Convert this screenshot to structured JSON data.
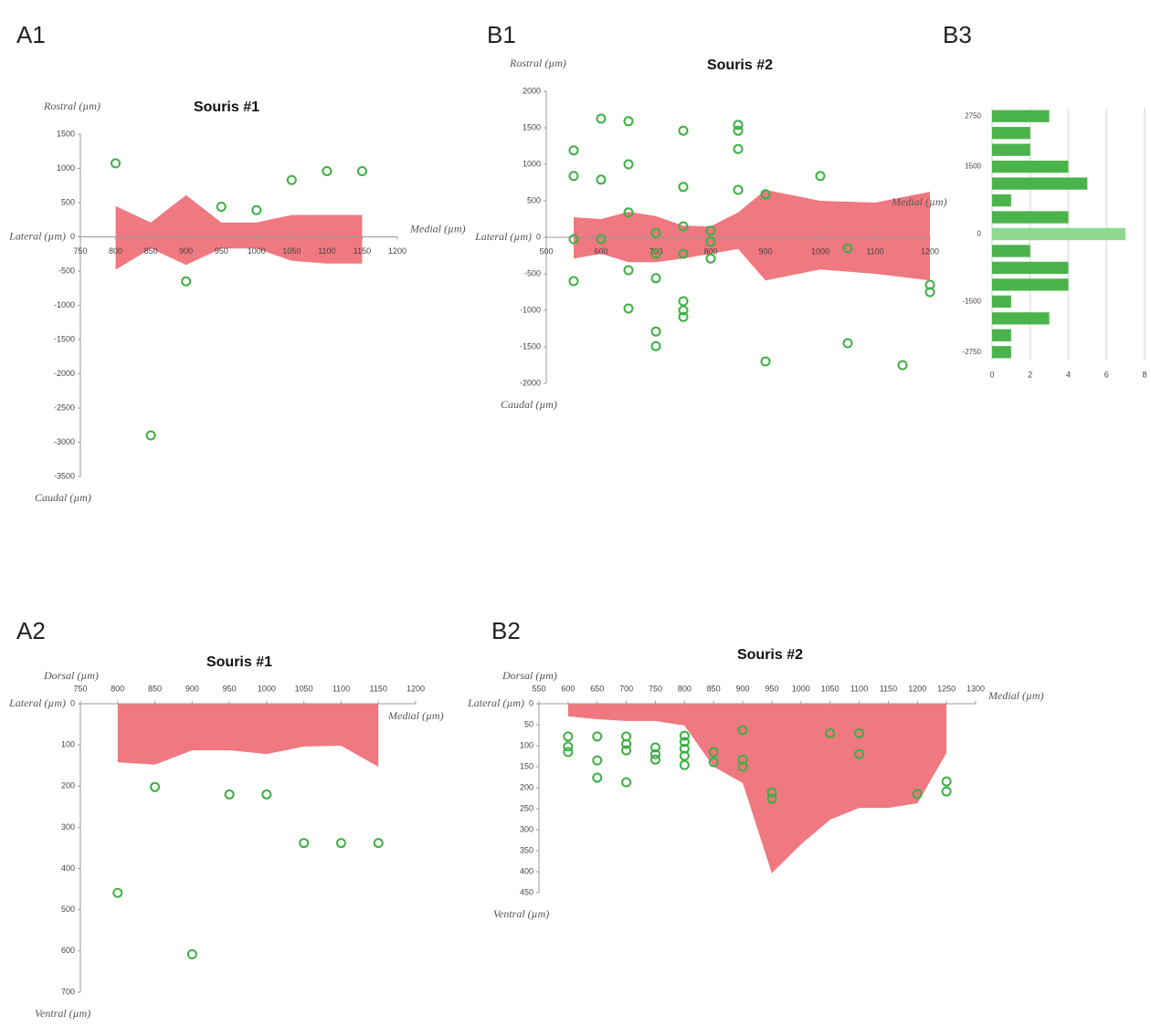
{
  "chart_data": [
    {
      "type": "scatter",
      "panel": "A1",
      "title": "Souris #1",
      "y_label_top": "Rostral (µm)",
      "y_label_bottom": "Caudal (µm)",
      "x_label_left": "Lateral (µm)",
      "x_label_right": "Medial (µm)",
      "xlim": [
        750,
        1200
      ],
      "xticks": [
        750,
        800,
        850,
        900,
        950,
        1000,
        1050,
        1100,
        1150,
        1200
      ],
      "x_tick_side": "below",
      "ylim": [
        -3500,
        1500
      ],
      "yticks": [
        1500,
        1000,
        500,
        0,
        -500,
        -1000,
        -1500,
        -2000,
        -2500,
        -3000,
        -3500
      ],
      "points": {
        "color": "#3cb043",
        "x": [
          800,
          850,
          900,
          950,
          1000,
          1050,
          1100,
          1150
        ],
        "y": [
          1075,
          -2900,
          -650,
          440,
          390,
          830,
          960,
          960
        ]
      },
      "band": {
        "color": "#f07880",
        "x": [
          800,
          850,
          900,
          950,
          1000,
          1050,
          1100,
          1150
        ],
        "upper": [
          450,
          210,
          610,
          210,
          210,
          320,
          320,
          320
        ],
        "lower": [
          -480,
          -170,
          -410,
          -170,
          -170,
          -350,
          -390,
          -390
        ]
      }
    },
    {
      "type": "scatter",
      "panel": "B1",
      "title": "Souris #2",
      "y_label_top": "Rostral (µm)",
      "y_label_bottom": "Caudal (µm)",
      "x_label_left": "Lateral (µm)",
      "x_label_right": "Medial (µm)",
      "xlim": [
        500,
        1200
      ],
      "xticks": [
        500,
        600,
        700,
        800,
        900,
        1000,
        1100,
        1200
      ],
      "x_tick_side": "below",
      "ylim": [
        -2000,
        2000
      ],
      "yticks": [
        2000,
        1500,
        1000,
        500,
        0,
        -500,
        -1000,
        -1500,
        -2000
      ],
      "points": {
        "color": "#3cb043",
        "x": [
          550,
          550,
          550,
          550,
          600,
          600,
          600,
          650,
          650,
          650,
          650,
          650,
          700,
          700,
          700,
          700,
          700,
          750,
          750,
          750,
          750,
          750,
          750,
          750,
          800,
          800,
          800,
          850,
          850,
          850,
          850,
          900,
          900,
          1000,
          1050,
          1050,
          1150,
          1200,
          1200
        ],
        "y": [
          1190,
          840,
          -25,
          -600,
          1625,
          790,
          -25,
          1590,
          1000,
          340,
          -450,
          -975,
          60,
          -225,
          -560,
          -1290,
          -1490,
          1460,
          690,
          150,
          -225,
          -875,
          -1000,
          -1090,
          90,
          -60,
          -290,
          1540,
          1460,
          1210,
          650,
          590,
          -1700,
          840,
          -150,
          -1450,
          -1750,
          -650,
          -750
        ]
      },
      "band": {
        "color": "#f07880",
        "x": [
          550,
          600,
          650,
          700,
          750,
          800,
          850,
          900,
          1000,
          1100,
          1200
        ],
        "upper": [
          275,
          250,
          350,
          290,
          160,
          150,
          340,
          650,
          500,
          475,
          625
        ],
        "lower": [
          -290,
          -225,
          -340,
          -340,
          -290,
          -225,
          -160,
          -590,
          -440,
          -500,
          -590
        ]
      }
    },
    {
      "type": "bar",
      "panel": "B3",
      "orientation": "horizontal",
      "color": "#4bb34b",
      "grid": true,
      "highlight": {
        "index": 7,
        "color": "#90d890"
      },
      "categories": [
        "2750",
        null,
        null,
        "1500",
        null,
        null,
        null,
        "0",
        null,
        null,
        null,
        "-1500",
        null,
        null,
        "-2750"
      ],
      "values": [
        3,
        2,
        2,
        4,
        5,
        1,
        4,
        7,
        2,
        4,
        4,
        1,
        3,
        1,
        1
      ],
      "xlim": [
        0,
        8
      ],
      "xticks": [
        0,
        2,
        4,
        6,
        8
      ]
    },
    {
      "type": "scatter",
      "panel": "A2",
      "title": "Souris #1",
      "y_label_top": "Dorsal (µm)",
      "y_label_bottom": "Ventral (µm)",
      "x_label_left": "Lateral (µm)",
      "x_label_right": "Medial (µm)",
      "xlim": [
        750,
        1200
      ],
      "xticks": [
        750,
        800,
        850,
        900,
        950,
        1000,
        1050,
        1100,
        1150,
        1200
      ],
      "x_tick_side": "above",
      "ylim": [
        700,
        0
      ],
      "yticks": [
        0,
        100,
        200,
        300,
        400,
        500,
        600,
        700
      ],
      "points": {
        "color": "#3cb043",
        "x": [
          800,
          850,
          900,
          950,
          1000,
          1050,
          1100,
          1150
        ],
        "y": [
          459,
          202,
          608,
          220,
          220,
          338,
          338,
          338
        ]
      },
      "band": {
        "color": "#f07880",
        "x": [
          800,
          850,
          900,
          950,
          1000,
          1050,
          1100,
          1150
        ],
        "lower": [
          142,
          148,
          113,
          113,
          122,
          104,
          102,
          153
        ]
      }
    },
    {
      "type": "scatter",
      "panel": "B2",
      "title": "Souris #2",
      "y_label_top": "Dorsal (µm)",
      "y_label_bottom": "Ventral (µm)",
      "x_label_left": "Lateral (µm)",
      "x_label_right": "Medial (µm)",
      "xlim": [
        550,
        1300
      ],
      "xticks": [
        550,
        600,
        650,
        700,
        750,
        800,
        850,
        900,
        950,
        1000,
        1050,
        1100,
        1150,
        1200,
        1250,
        1300
      ],
      "x_tick_side": "above",
      "ylim": [
        450,
        0
      ],
      "yticks": [
        0,
        50,
        100,
        150,
        200,
        250,
        300,
        350,
        400,
        450
      ],
      "points": {
        "color": "#3cb043",
        "x": [
          600,
          600,
          600,
          650,
          650,
          650,
          700,
          700,
          700,
          700,
          750,
          750,
          750,
          800,
          800,
          800,
          800,
          800,
          850,
          850,
          900,
          900,
          900,
          950,
          950,
          1050,
          1100,
          1100,
          1200,
          1250,
          1250
        ],
        "y": [
          78,
          102,
          115,
          78,
          135,
          176,
          78,
          96,
          111,
          187,
          104,
          120,
          133,
          76,
          91,
          107,
          124,
          146,
          115,
          139,
          63,
          133,
          150,
          211,
          226,
          70,
          70,
          120,
          215,
          185,
          209
        ]
      },
      "band": {
        "color": "#f07880",
        "x": [
          600,
          650,
          700,
          750,
          800,
          850,
          900,
          950,
          1000,
          1050,
          1100,
          1150,
          1200,
          1250
        ],
        "lower": [
          30,
          37,
          41,
          41,
          52,
          150,
          189,
          404,
          335,
          276,
          248,
          248,
          237,
          117
        ]
      }
    }
  ]
}
